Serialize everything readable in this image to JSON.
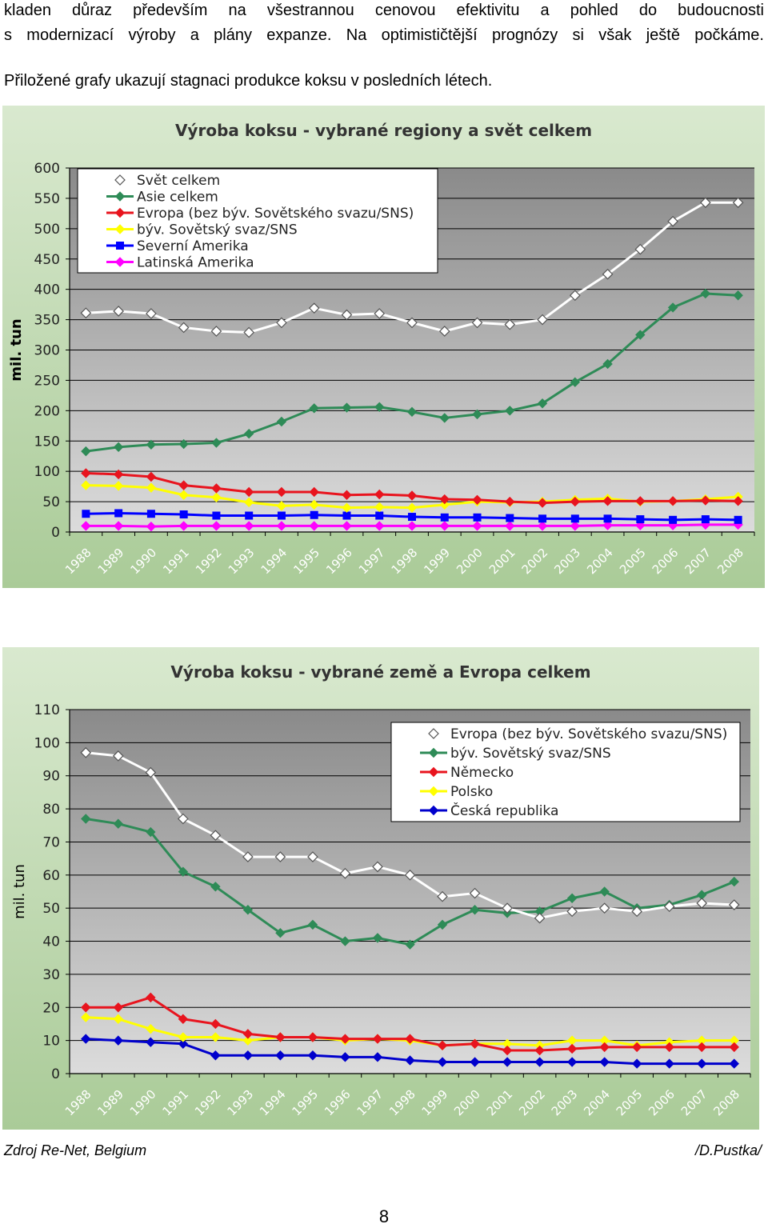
{
  "text": {
    "line1": "kladen důraz především na všestrannou cenovou efektivitu a pohled do budoucnosti",
    "line2": "s modernizací výroby a plány expanze. Na optimističtější prognózy si však ještě počkáme.",
    "line3": "Přiložené grafy ukazují stagnaci produkce koksu v posledních létech.",
    "source": "Zdroj Re-Net, Belgium",
    "author": "/D.Pustka/",
    "page_number": "8"
  },
  "chart_data": [
    {
      "type": "line",
      "title": "Výroba koksu -  vybrané regiony a svět celkem",
      "ylabel": "mil. tun",
      "xlabel": "",
      "ylim": [
        0,
        600
      ],
      "yticks": [
        0,
        50,
        100,
        150,
        200,
        250,
        300,
        350,
        400,
        450,
        500,
        550,
        600
      ],
      "categories": [
        "1988",
        "1989",
        "1990",
        "1991",
        "1992",
        "1993",
        "1994",
        "1995",
        "1996",
        "1997",
        "1998",
        "1999",
        "2000",
        "2001",
        "2002",
        "2003",
        "2004",
        "2005",
        "2006",
        "2007",
        "2008"
      ],
      "grid": true,
      "legend": "top-left",
      "series": [
        {
          "name": "Svět celkem",
          "color": "#ffffff",
          "marker": "diamond-open",
          "values": [
            361,
            364,
            360,
            337,
            331,
            329,
            345,
            369,
            358,
            360,
            345,
            331,
            345,
            342,
            350,
            390,
            425,
            466,
            512,
            543,
            543
          ]
        },
        {
          "name": "Asie celkem",
          "color": "#2e8b57",
          "marker": "diamond",
          "values": [
            133,
            140,
            144,
            145,
            147,
            162,
            182,
            204,
            205,
            206,
            198,
            188,
            194,
            200,
            212,
            247,
            277,
            325,
            370,
            393,
            390
          ]
        },
        {
          "name": "Evropa (bez býv. Sovětského svazu/SNS)",
          "color": "#e8141e",
          "marker": "diamond",
          "values": [
            97,
            95,
            91,
            77,
            72,
            66,
            66,
            66,
            61,
            62,
            60,
            54,
            53,
            50,
            48,
            50,
            51,
            51,
            51,
            52,
            51
          ]
        },
        {
          "name": "býv. Sovětský svaz/SNS",
          "color": "#ffff00",
          "marker": "diamond",
          "values": [
            77,
            76,
            73,
            61,
            57,
            49,
            43,
            45,
            40,
            41,
            40,
            45,
            50,
            49,
            50,
            53,
            55,
            50,
            51,
            54,
            58
          ]
        },
        {
          "name": "Severní Amerika",
          "color": "#0000ff",
          "marker": "square",
          "values": [
            30,
            31,
            30,
            29,
            27,
            27,
            27,
            28,
            27,
            27,
            25,
            24,
            24,
            23,
            22,
            22,
            22,
            21,
            20,
            21,
            20
          ]
        },
        {
          "name": "Latinská Amerika",
          "color": "#ff00ff",
          "marker": "diamond",
          "values": [
            10,
            10,
            9,
            10,
            10,
            10,
            10,
            10,
            10,
            10,
            10,
            10,
            10,
            10,
            10,
            10,
            11,
            11,
            11,
            12,
            12
          ]
        }
      ]
    },
    {
      "type": "line",
      "title": "Výroba koksu - vybrané země a Evropa celkem",
      "ylabel": "mil. tun",
      "xlabel": "",
      "ylim": [
        0,
        110
      ],
      "yticks": [
        0,
        10,
        20,
        30,
        40,
        50,
        60,
        70,
        80,
        90,
        100,
        110
      ],
      "categories": [
        "1988",
        "1989",
        "1990",
        "1991",
        "1992",
        "1993",
        "1994",
        "1995",
        "1996",
        "1997",
        "1998",
        "1999",
        "2000",
        "2001",
        "2002",
        "2003",
        "2004",
        "2005",
        "2006",
        "2007",
        "2008"
      ],
      "grid": true,
      "legend": "top-right",
      "series": [
        {
          "name": "Evropa (bez býv. Sovětského svazu/SNS)",
          "color": "#ffffff",
          "marker": "diamond-open",
          "values": [
            97,
            96,
            91,
            77,
            72,
            65.5,
            65.5,
            65.5,
            60.5,
            62.5,
            60,
            53.5,
            54.5,
            50,
            47,
            49,
            50,
            49,
            50.5,
            51.5,
            51
          ]
        },
        {
          "name": "býv. Sovětský svaz/SNS",
          "color": "#2e8b57",
          "marker": "diamond",
          "values": [
            77,
            75.5,
            73,
            61,
            56.5,
            49.5,
            42.5,
            45,
            40,
            41,
            39,
            45,
            49.5,
            48.5,
            49,
            53,
            55,
            50,
            51,
            54,
            58
          ]
        },
        {
          "name": "Německo",
          "color": "#e8141e",
          "marker": "diamond",
          "values": [
            20,
            20,
            23,
            16.5,
            15,
            12,
            11,
            11,
            10.5,
            10.5,
            10.5,
            8.5,
            9,
            7,
            7,
            7.5,
            8,
            8,
            8,
            8,
            8
          ]
        },
        {
          "name": "Polsko",
          "color": "#ffff00",
          "marker": "diamond",
          "values": [
            17,
            16.5,
            13.5,
            11,
            11,
            10,
            11,
            11,
            10,
            10.5,
            10,
            8.5,
            9,
            9,
            8.5,
            10,
            10,
            8.5,
            9.5,
            10,
            10
          ]
        },
        {
          "name": "Česká republika",
          "color": "#0000cc",
          "marker": "diamond",
          "values": [
            10.5,
            10,
            9.5,
            9,
            5.5,
            5.5,
            5.5,
            5.5,
            5,
            5,
            4,
            3.5,
            3.5,
            3.5,
            3.5,
            3.5,
            3.5,
            3,
            3,
            3,
            3
          ]
        }
      ]
    }
  ]
}
